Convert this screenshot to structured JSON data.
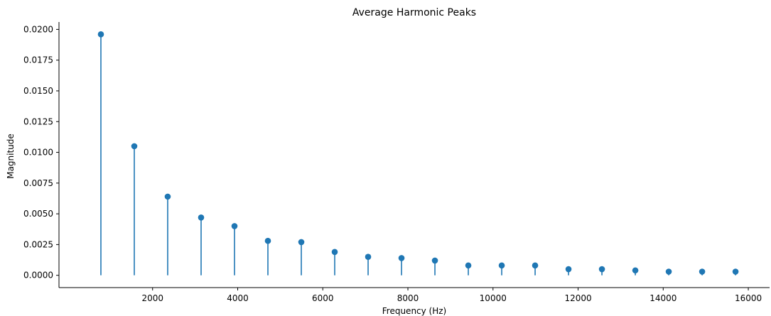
{
  "chart_data": {
    "type": "stem",
    "title": "Average Harmonic Peaks",
    "xlabel": "Frequency (Hz)",
    "ylabel": "Magnitude",
    "xlim": [
      -200,
      16500
    ],
    "ylim": [
      -0.001,
      0.0206
    ],
    "xticks": [
      2000,
      4000,
      6000,
      8000,
      10000,
      12000,
      14000,
      16000
    ],
    "xtick_labels": [
      "2000",
      "4000",
      "6000",
      "8000",
      "10000",
      "12000",
      "14000",
      "16000"
    ],
    "yticks": [
      0,
      0.0025,
      0.005,
      0.0075,
      0.01,
      0.0125,
      0.015,
      0.0175,
      0.02
    ],
    "ytick_labels": [
      "0.0000",
      "0.0025",
      "0.0050",
      "0.0075",
      "0.0100",
      "0.0125",
      "0.0150",
      "0.0175",
      "0.0200"
    ],
    "color": "#1f77b4",
    "grid": false,
    "x": [
      785,
      1570,
      2355,
      3140,
      3925,
      4710,
      5495,
      6280,
      7065,
      7850,
      8635,
      9420,
      10205,
      10990,
      11775,
      12560,
      13345,
      14130,
      14915,
      15700
    ],
    "y": [
      0.0196,
      0.0105,
      0.0064,
      0.0047,
      0.004,
      0.0028,
      0.0027,
      0.0019,
      0.0015,
      0.0014,
      0.0012,
      0.0008,
      0.0008,
      0.0008,
      0.0005,
      0.0005,
      0.0004,
      0.0003,
      0.0003,
      0.0003
    ]
  }
}
